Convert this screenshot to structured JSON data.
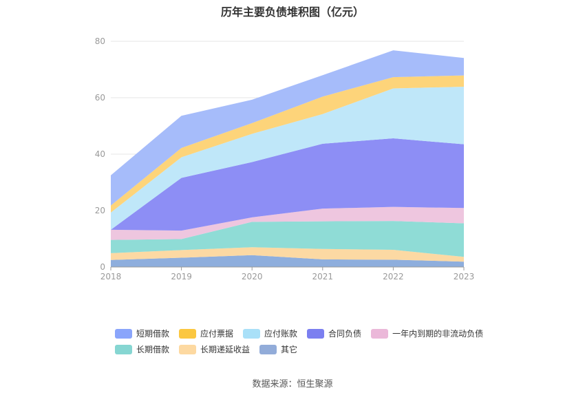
{
  "chart_data": {
    "type": "area",
    "title": "历年主要负债堆积图（亿元）",
    "x": [
      "2018",
      "2019",
      "2020",
      "2021",
      "2022",
      "2023"
    ],
    "ylim": [
      0,
      80
    ],
    "yticks": [
      0,
      20,
      40,
      60,
      80
    ],
    "grid": true,
    "legend_position": "bottom",
    "stacked": true,
    "series": [
      {
        "name": "其它",
        "color": "#8eaedd",
        "values": [
          2.5,
          3.3,
          4.2,
          2.7,
          2.6,
          1.9
        ]
      },
      {
        "name": "长期递延收益",
        "color": "#fcd9a3",
        "values": [
          2.4,
          2.7,
          2.8,
          3.7,
          3.5,
          1.7
        ]
      },
      {
        "name": "长期借款",
        "color": "#8fdcd6",
        "values": [
          4.7,
          3.9,
          9.0,
          9.8,
          10.2,
          11.9
        ]
      },
      {
        "name": "一年内到期的非流动负债",
        "color": "#eec6df",
        "values": [
          3.6,
          3.0,
          1.6,
          4.5,
          5.0,
          5.4
        ]
      },
      {
        "name": "合同负债",
        "color": "#8d8ef5",
        "values": [
          0.0,
          18.7,
          19.6,
          23.0,
          24.3,
          22.6
        ]
      },
      {
        "name": "应付账款",
        "color": "#bfe7f9",
        "values": [
          6.1,
          7.3,
          10.0,
          10.5,
          17.7,
          20.4
        ]
      },
      {
        "name": "应付票据",
        "color": "#fdd47a",
        "values": [
          2.5,
          3.3,
          3.8,
          6.2,
          4.0,
          4.0
        ]
      },
      {
        "name": "短期借款",
        "color": "#a6bcfa",
        "values": [
          10.7,
          11.4,
          8.3,
          7.6,
          9.5,
          6.2
        ]
      }
    ]
  },
  "legend": {
    "row1": [
      {
        "label": "短期借款",
        "color": "#8aa5fb"
      },
      {
        "label": "应付票据",
        "color": "#fbc740"
      },
      {
        "label": "应付账款",
        "color": "#a9e0f8"
      },
      {
        "label": "合同负债",
        "color": "#7b7ff0"
      },
      {
        "label": "一年内到期的非流动负债",
        "color": "#ebb8d9"
      }
    ],
    "row2": [
      {
        "label": "长期借款",
        "color": "#86d6d2"
      },
      {
        "label": "长期递延收益",
        "color": "#fdd9a1"
      },
      {
        "label": "其它",
        "color": "#92acd9"
      }
    ]
  },
  "source": "数据来源：恒生聚源"
}
